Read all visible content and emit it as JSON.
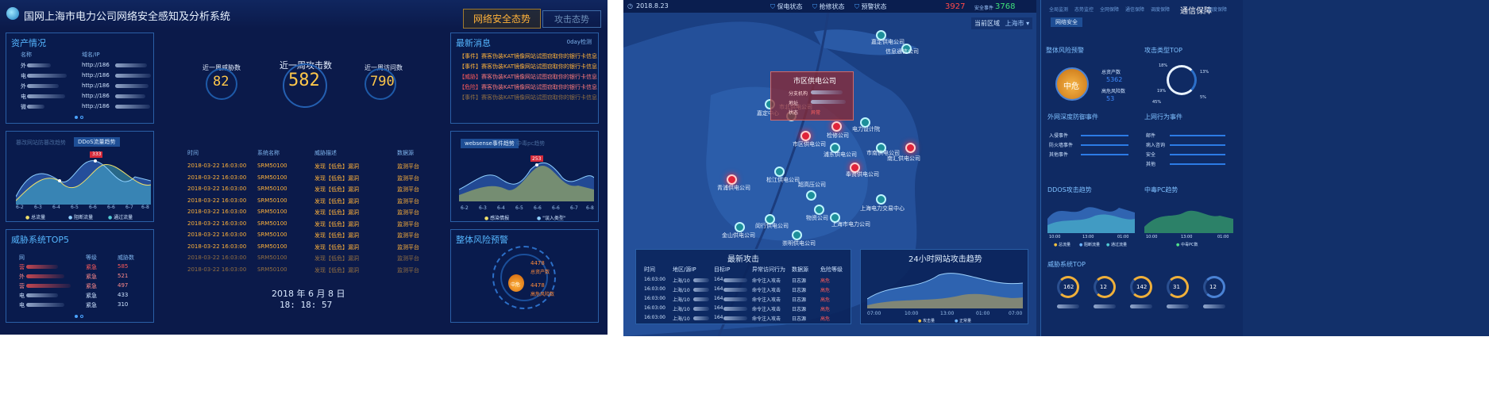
{
  "left": {
    "title": "国网上海市电力公司网络安全感知及分析系统",
    "tabs": [
      "网络安全态势",
      "攻击态势"
    ],
    "assets": {
      "title": "资产情况",
      "headers": [
        "名称",
        "域名/IP"
      ],
      "rows": [
        {
          "name": "外",
          "url": "http://186"
        },
        {
          "name": "电",
          "url": "http://186"
        },
        {
          "name": "外",
          "url": "http://186"
        },
        {
          "name": "电",
          "url": "http://186"
        },
        {
          "name": "微",
          "url": "http://186"
        }
      ]
    },
    "stats": [
      {
        "label": "近一周威胁数",
        "value": "82"
      },
      {
        "label": "近一周攻击数",
        "value": "582"
      },
      {
        "label": "近一周访问数",
        "value": "790"
      }
    ],
    "news": {
      "title": "最新消息",
      "badge": "0day检测",
      "items": [
        {
          "tag": "【事件】",
          "text": "赛客伪装KAT镜像网站试图窃取你的银行卡信息"
        },
        {
          "tag": "【事件】",
          "text": "赛客伪装KAT镜像网站试图窃取你的银行卡信息"
        },
        {
          "tag": "【威胁】",
          "text": "赛客伪装KAT镜像网站试图窃取你的银行卡信息"
        },
        {
          "tag": "【危险】",
          "text": "赛客伪装KAT镜像网站试图窃取你的银行卡信息"
        },
        {
          "tag": "【事件】",
          "text": "赛客伪装KAT镜像网站试图窃取你的银行卡信息"
        }
      ]
    },
    "ddos": {
      "tab_inactive": "篡改网站防篡改趋势",
      "tab_active": "DDoS流量趋势",
      "marker": "333",
      "x": [
        "6-2",
        "6-3",
        "6-4",
        "6-5",
        "6-6",
        "6-6",
        "6-7",
        "6-8"
      ],
      "legend": [
        "总流量",
        "阻断流量",
        "通过流量"
      ]
    },
    "events_table": {
      "headers": [
        "时间",
        "系统名称",
        "威胁描述",
        "数据源"
      ],
      "rows": [
        [
          "2018-03-22 16:03:00",
          "SRM50100",
          "发现【低危】漏洞",
          "监测平台"
        ],
        [
          "2018-03-22 16:03:00",
          "SRM50100",
          "发现【低危】漏洞",
          "监测平台"
        ],
        [
          "2018-03-22 16:03:00",
          "SRM50100",
          "发现【低危】漏洞",
          "监测平台"
        ],
        [
          "2018-03-22 16:03:00",
          "SRM50100",
          "发现【低危】漏洞",
          "监测平台"
        ],
        [
          "2018-03-22 16:03:00",
          "SRM50100",
          "发现【低危】漏洞",
          "监测平台"
        ],
        [
          "2018-03-22 16:03:00",
          "SRM50100",
          "发现【低危】漏洞",
          "监测平台"
        ],
        [
          "2018-03-22 16:03:00",
          "SRM50100",
          "发现【低危】漏洞",
          "监测平台"
        ],
        [
          "2018-03-22 16:03:00",
          "SRM50100",
          "发现【低危】漏洞",
          "监测平台"
        ],
        [
          "2018-03-22 16:03:00",
          "SRM50100",
          "发现【低危】漏洞",
          "监测平台"
        ],
        [
          "2018-03-22 16:03:00",
          "SRM50100",
          "发现【低危】漏洞",
          "监测平台"
        ]
      ]
    },
    "date": "2018 年 6 月 8 日",
    "time": "18: 18: 57",
    "threat_top": {
      "title": "威胁系统TOP5",
      "headers": [
        "网",
        "等级",
        "威胁数"
      ],
      "rows": [
        {
          "name": "营",
          "level": "紧急",
          "count": "585"
        },
        {
          "name": "外",
          "level": "紧急",
          "count": "521"
        },
        {
          "name": "营",
          "level": "紧急",
          "count": "497"
        },
        {
          "name": "电",
          "level": "紧急",
          "count": "433"
        },
        {
          "name": "电",
          "level": "紧急",
          "count": "310"
        }
      ]
    },
    "websense": {
      "tab_active": "websense事件趋势",
      "tab_inactive": "中毒pc趋势",
      "marker": "253",
      "x": [
        "6-2",
        "6-3",
        "6-4",
        "6-5",
        "6-6",
        "6-6",
        "6-7",
        "6-8"
      ],
      "legend": [
        "感染情报",
        "\"误入类型\""
      ]
    },
    "risk": {
      "title": "整体风险预警",
      "total_label": "总资产数",
      "total": "4478",
      "high_label": "高危风险数",
      "high": "4478",
      "level": "中危"
    }
  },
  "right": {
    "date": "2018.8.23",
    "status_tabs": [
      "保电状态",
      "抢修状态",
      "预警状态"
    ],
    "count_a": "3927",
    "count_b_label": "安全事件",
    "count_b": "3768",
    "region_label": "当前区域",
    "region_value": "上海市",
    "popup": {
      "title": "市区供电公司",
      "fields": [
        {
          "label": "分支机构",
          "value": ""
        },
        {
          "label": "地址",
          "value": ""
        },
        {
          "label": "状态",
          "value": "异常"
        }
      ]
    },
    "map_labels": [
      "嘉定供电公司",
      "信息通信公司",
      "市北供电公司",
      "市区供电公司",
      "浦东供电公司",
      "嘉定中心",
      "检修公司",
      "南汇供电公司",
      "市南供电公司",
      "电力设计院",
      "松江供电公司",
      "超高压公司",
      "青浦供电公司",
      "奉贤供电公司",
      "物资公司",
      "上海电力交易中心",
      "上海市电力公司",
      "闵行供电公司",
      "金山供电公司",
      "崇明供电公司"
    ],
    "latest_attacks": {
      "title": "最新攻击",
      "headers": [
        "时间",
        "地区/源IP",
        "目标IP",
        "异常访问行为",
        "数据源",
        "危险等级"
      ],
      "rows": [
        [
          "16:03:00",
          "上海/10",
          "164",
          "命令注入攻击",
          "日志源",
          "高危"
        ],
        [
          "16:03:00",
          "上海/10",
          "164",
          "命令注入攻击",
          "日志源",
          "高危"
        ],
        [
          "16:03:00",
          "上海/10",
          "164",
          "命令注入攻击",
          "日志源",
          "高危"
        ],
        [
          "16:03:00",
          "上海/10",
          "164",
          "命令注入攻击",
          "日志源",
          "高危"
        ],
        [
          "16:03:00",
          "上海/10",
          "164",
          "命令注入攻击",
          "日志源",
          "高危"
        ]
      ]
    },
    "trend24": {
      "title": "24小时网站攻击趋势",
      "x": [
        "07:00",
        "10:00",
        "13:00",
        "01:00",
        "07:00"
      ],
      "legend": [
        "攻击量",
        "正常量"
      ]
    },
    "sidebar": {
      "top_tabs": [
        "全局监测",
        "态势监控",
        "全网保障",
        "通信保障",
        "调度保障",
        "通信保障",
        "调度保障"
      ],
      "active_tab": "通信保障",
      "sub_tab": "网络安全",
      "risk_title": "整体风险预警",
      "risk_level": "中危",
      "asset_label": "总资产数",
      "asset_value": "5362",
      "high_label": "高危风险数",
      "high_value": "53",
      "attack_type_title": "攻击类型TOP",
      "attack_type_pcts": [
        "18%",
        "13%",
        "19%",
        "45%",
        "5%"
      ],
      "ext_title": "外网深度防御事件",
      "ext_items": [
        "入侵事件",
        "防火墙事件",
        "其他事件"
      ],
      "int_title": "上网行为事件",
      "int_items": [
        "邮件",
        "病入咨询",
        "安全",
        "其他"
      ],
      "ddos_title": "DDOS攻击趋势",
      "ddos_x": [
        "10:00",
        "13:00",
        "01:00"
      ],
      "ddos_legend": [
        "总流量",
        "阻断流量",
        "通过流量"
      ],
      "pc_title": "中毒PC趋势",
      "pc_x": [
        "10:00",
        "13:00",
        "01:00"
      ],
      "pc_legend": [
        "中毒PC数"
      ],
      "top_title": "威胁系统TOP",
      "top_values": [
        "162",
        "12",
        "142",
        "31",
        "12"
      ]
    }
  }
}
